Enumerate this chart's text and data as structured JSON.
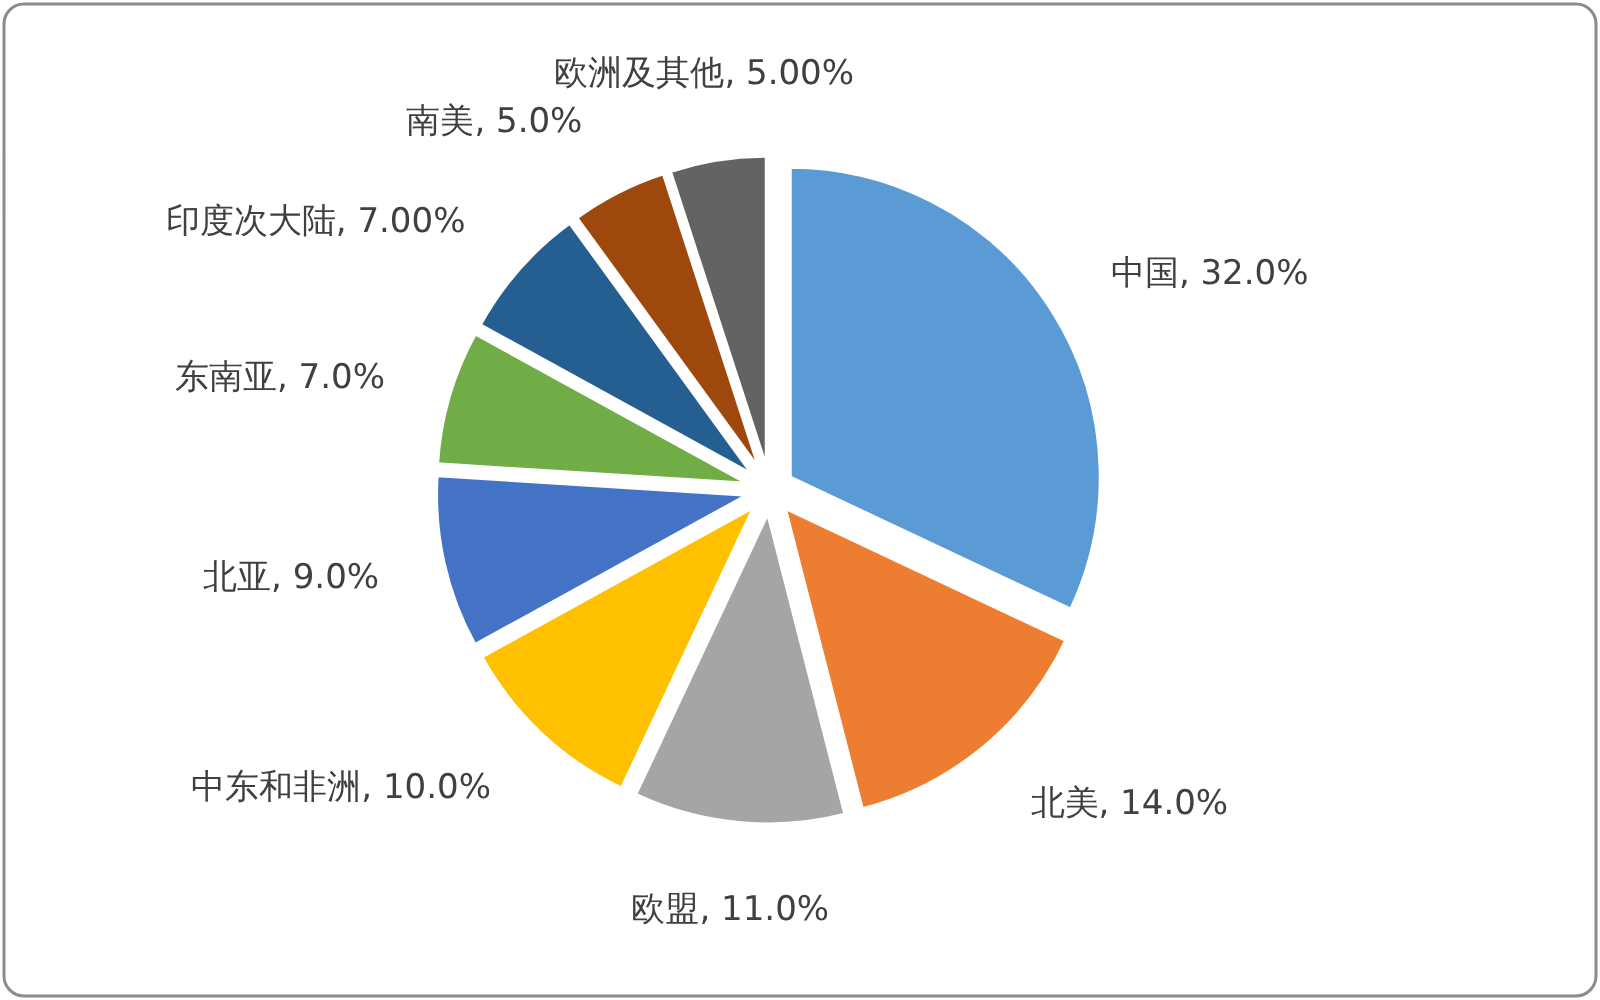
{
  "chart_data": {
    "type": "pie",
    "categories": [
      "中国",
      "北美",
      "欧盟",
      "中东和非洲",
      "北亚",
      "东南亚",
      "印度次大陆",
      "南美",
      "欧洲及其他"
    ],
    "values": [
      32,
      14,
      11,
      10,
      9,
      7,
      7,
      5,
      5
    ],
    "value_labels": [
      "32.0%",
      "14.0%",
      "11.0%",
      "10.0%",
      "9.0%",
      "7.0%",
      "7.00%",
      "5.0%",
      "5.00%"
    ],
    "colors": [
      "#5b9bd5",
      "#ed7d31",
      "#a5a5a5",
      "#ffc000",
      "#4472c4",
      "#70ad47",
      "#255e91",
      "#9e480e",
      "#636363"
    ]
  }
}
